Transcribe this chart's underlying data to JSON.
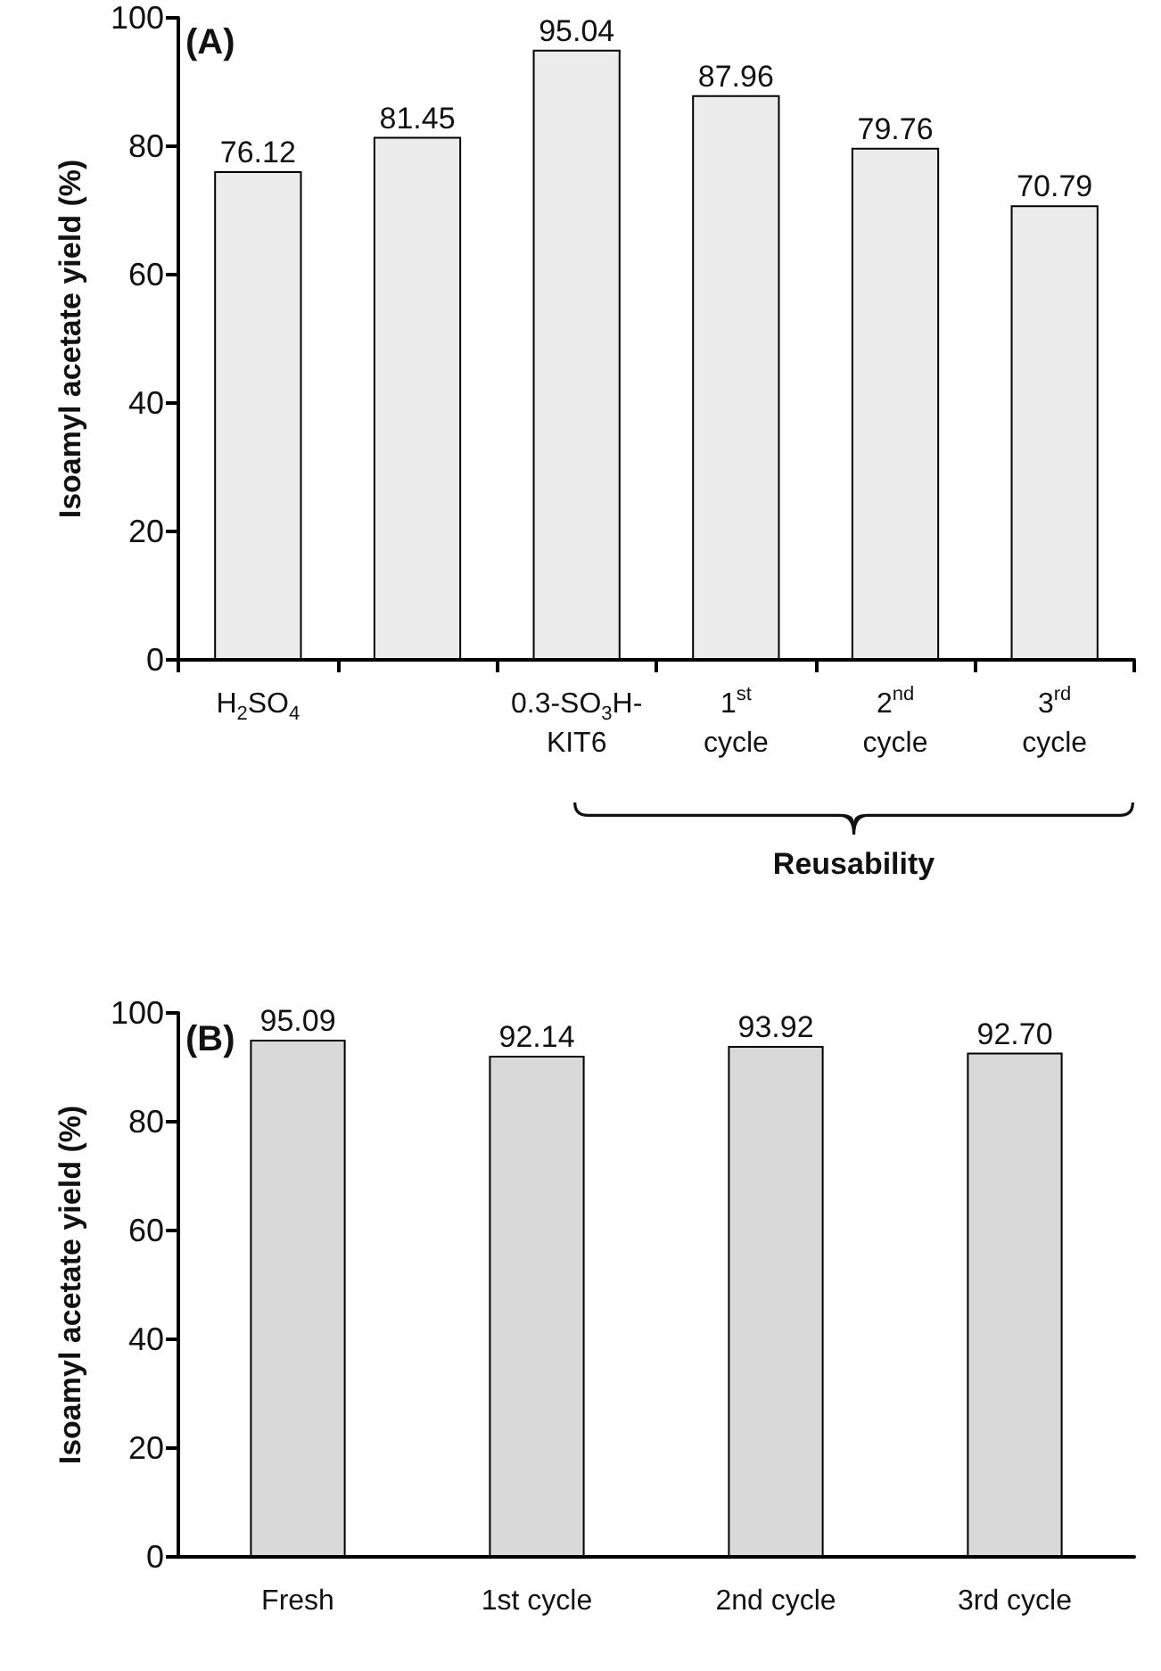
{
  "chart_data": [
    {
      "type": "bar",
      "title": "(A)",
      "ylabel": "Isoamyl acetate yield (%)",
      "categories": [
        "H$_{2}$SO$_{4}$",
        null,
        "0.3-SO$_{3}$H-\nKIT6",
        "1$^{st}$\ncycle",
        "2$^{nd}$\ncycle",
        "3$^{rd}$\ncycle"
      ],
      "values": [
        76.12,
        81.45,
        95.04,
        87.96,
        79.76,
        70.79
      ],
      "color": "#ececec",
      "ylim": [
        0,
        100
      ],
      "yticks": [
        0,
        20,
        40,
        60,
        80,
        100
      ],
      "data_labels": true,
      "annotations": [
        "Reusability"
      ]
    },
    {
      "type": "bar",
      "title": "(B)",
      "ylabel": "Isoamyl acetate yield (%)",
      "categories": [
        "Fresh",
        "1st cycle",
        "2nd cycle",
        "3rd cycle"
      ],
      "values": [
        95.09,
        92.14,
        93.92,
        92.7
      ],
      "value_labels": [
        "95.09",
        "92.14",
        "93.92",
        "92.70"
      ],
      "color": "#d9d9d9",
      "ylim": [
        0,
        100
      ],
      "yticks": [
        0,
        20,
        40,
        60,
        80,
        100
      ]
    }
  ]
}
